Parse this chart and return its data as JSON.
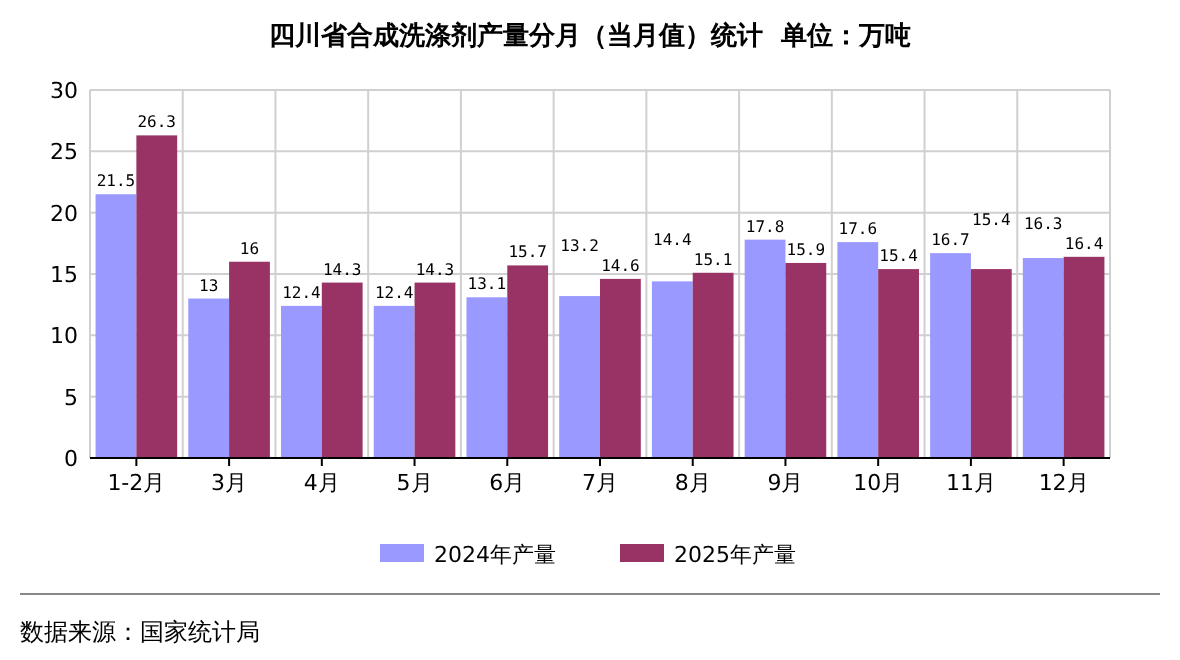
{
  "chart_data": {
    "type": "bar",
    "title": "四川省合成洗涤剂产量分月（当月值）统计  单位：万吨",
    "categories": [
      "1-2月",
      "3月",
      "4月",
      "5月",
      "6月",
      "7月",
      "8月",
      "9月",
      "10月",
      "11月",
      "12月"
    ],
    "series": [
      {
        "name": "2024年产量",
        "color": "#9999ff",
        "values": [
          21.5,
          13,
          12.4,
          12.4,
          13.1,
          13.2,
          14.4,
          17.8,
          17.6,
          16.7,
          16.3
        ]
      },
      {
        "name": "2025年产量",
        "color": "#993366",
        "values": [
          26.3,
          16,
          14.3,
          14.3,
          15.7,
          14.6,
          15.1,
          15.9,
          15.4,
          15.4,
          16.4
        ]
      }
    ],
    "ylim": [
      0,
      30
    ],
    "yticks": [
      0,
      5,
      10,
      15,
      20,
      25,
      30
    ],
    "grid": true,
    "legend": "bottom",
    "data_labels": true,
    "annotations": [
      "数据来源：国家统计局"
    ]
  }
}
